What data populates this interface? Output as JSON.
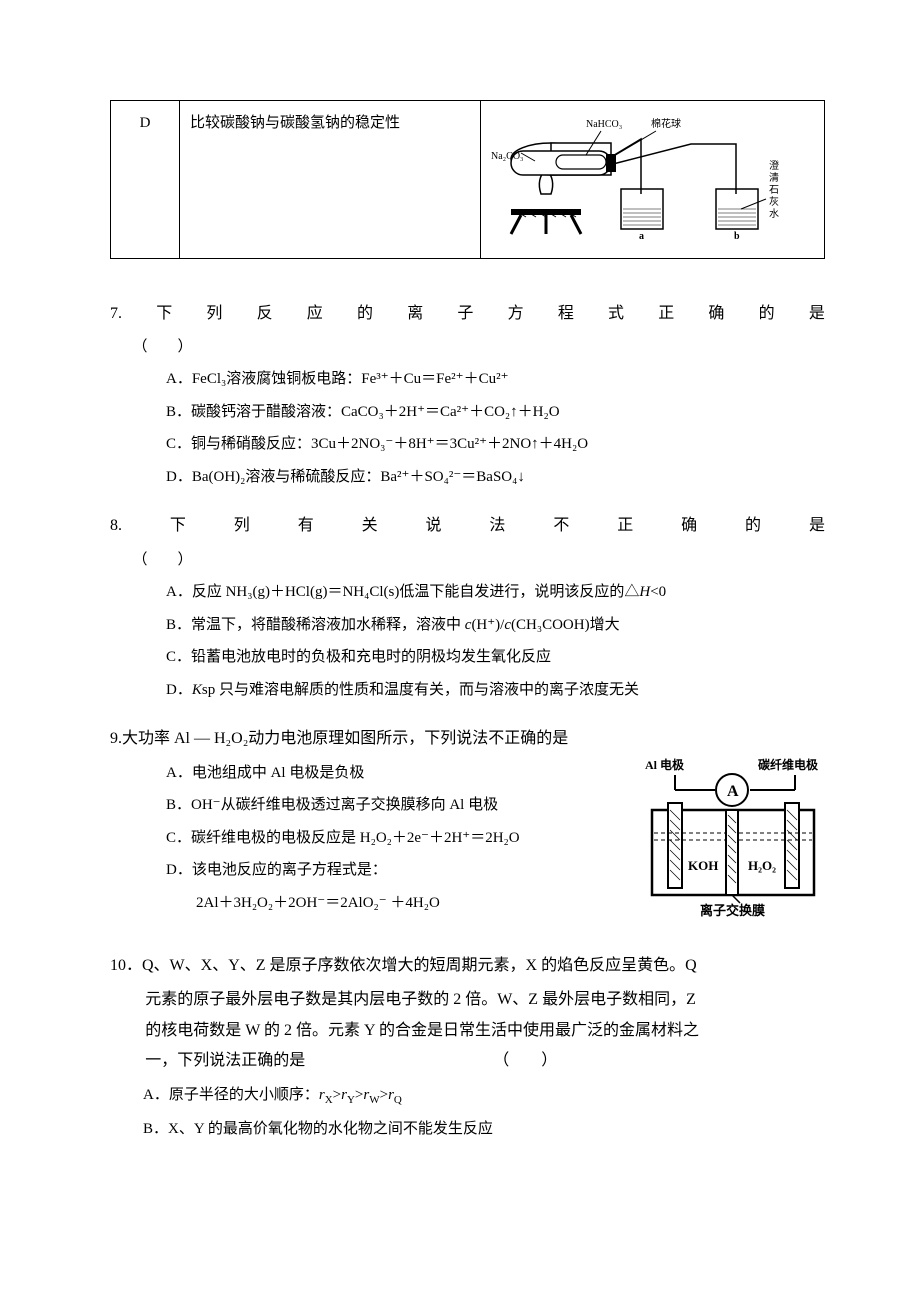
{
  "table_row": {
    "col1": "D",
    "col2": "比较碳酸钠与碳酸氢钠的稳定性",
    "apparatus": {
      "label_nahco3": "NaHCO₃",
      "label_cotton": "棉花球",
      "label_na2co3": "Na₂CO₃",
      "label_limewater": "澄清石灰水",
      "beaker_a": "a",
      "beaker_b": "b"
    }
  },
  "q7": {
    "prompt_chars": [
      "7.",
      "下",
      "列",
      "反",
      "应",
      "的",
      "离",
      "子",
      "方",
      "程",
      "式",
      "正",
      "确",
      "的",
      "是"
    ],
    "paren": "（　　）",
    "A": "A．FeCl₃溶液腐蚀铜板电路：Fe³⁺＋Cu＝Fe²⁺＋Cu²⁺",
    "B": "B．碳酸钙溶于醋酸溶液：CaCO₃＋2H⁺＝Ca²⁺＋CO₂↑＋H₂O",
    "C": "C．铜与稀硝酸反应：3Cu＋2NO₃⁻＋8H⁺＝3Cu²⁺＋2NO↑＋4H₂O",
    "D": "D．Ba(OH)₂溶液与稀硫酸反应：Ba²⁺＋SO₄²⁻＝BaSO₄↓"
  },
  "q8": {
    "prompt_chars": [
      "8.",
      "下",
      "列",
      "有",
      "关",
      "说",
      "法",
      "不",
      "正",
      "确",
      "的",
      "是"
    ],
    "paren": "（　　）",
    "A_pre": "A．反应 NH₃(g)＋HCl(g)＝NH₄Cl(s)低温下能自发进行，说明该反应的△",
    "A_ital": "H",
    "A_post": "<0",
    "B_pre": "B．常温下，将醋酸稀溶液加水稀释，溶液中 ",
    "B_ital1": "c",
    "B_mid1": "(H⁺)/",
    "B_ital2": "c",
    "B_mid2": "(CH₃COOH)增大",
    "C": "C．铅蓄电池放电时的负极和充电时的阴极均发生氧化反应",
    "D_pre": "D．",
    "D_ital": "K",
    "D_post": "sp 只与难溶电解质的性质和温度有关，而与溶液中的离子浓度无关"
  },
  "q9": {
    "prompt": "9.大功率 Al — H₂O₂动力电池原理如图所示，下列说法不正确的是",
    "A": "A．电池组成中 Al 电极是负极",
    "B": "B．OH⁻从碳纤维电极透过离子交换膜移向 Al 电极",
    "C": "C．碳纤维电极的电极反应是 H₂O₂＋2e⁻＋2H⁺＝2H₂O",
    "D": "D．该电池反应的离子方程式是：",
    "D2": "2Al＋3H₂O₂＋2OH⁻＝2AlO₂⁻ ＋4H₂O",
    "fig": {
      "al_label": "Al 电极",
      "c_label": "碳纤维电极",
      "meter": "A",
      "koh": "KOH",
      "h2o2": "H₂O₂",
      "membrane": "离子交换膜"
    }
  },
  "q10": {
    "line1": "10．Q、W、X、Y、Z 是原子序数依次增大的短周期元素，X 的焰色反应呈黄色。Q",
    "line2": "元素的原子最外层电子数是其内层电子数的 2 倍。W、Z 最外层电子数相同，Z",
    "line3": "的核电荷数是 W 的 2 倍。元素 Y 的合金是日常生活中使用最广泛的金属材料之",
    "line4_pre": "一，下列说法正确的是",
    "line4_post": "（　　）",
    "A_pre": "A．原子半径的大小顺序：",
    "A_r": "r",
    "A_mid": [
      ">",
      ">",
      ">"
    ],
    "A_sub": [
      "X",
      "Y",
      "W",
      "Q"
    ],
    "B": "B．X、Y 的最高价氧化物的水化物之间不能发生反应"
  }
}
